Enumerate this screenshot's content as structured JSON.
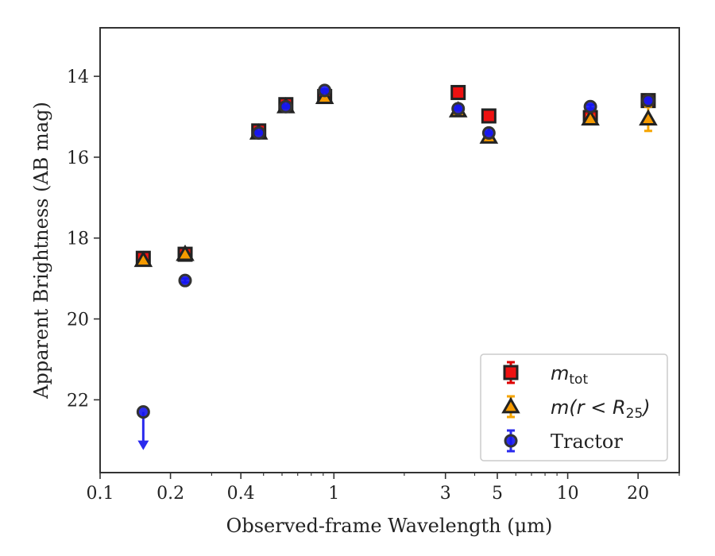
{
  "chart_data": {
    "type": "scatter",
    "title": "",
    "xlabel": "Observed-frame Wavelength (μm)",
    "ylabel": "Apparent Brightness (AB mag)",
    "xscale": "log",
    "xlim": [
      0.1,
      30
    ],
    "ylim": [
      23.8,
      12.8
    ],
    "y_inverted": true,
    "x_ticks": [
      0.1,
      0.2,
      0.4,
      1,
      3,
      5,
      10,
      20
    ],
    "x_tick_labels": [
      "0.1",
      "0.2",
      "0.4",
      "1",
      "3",
      "5",
      "10",
      "20"
    ],
    "y_ticks": [
      14,
      16,
      18,
      20,
      22
    ],
    "y_tick_labels": [
      "14",
      "16",
      "18",
      "20",
      "22"
    ],
    "grid": false,
    "legend_position": "lower-right",
    "series": [
      {
        "name": "m_tot",
        "marker": "square",
        "color": "#ee1111",
        "edge_color": "#222222",
        "error_color": "#dd0000",
        "x": [
          0.153,
          0.231,
          0.477,
          0.623,
          0.913,
          3.4,
          4.6,
          12.5,
          22.1
        ],
        "y": [
          18.5,
          18.4,
          15.35,
          14.7,
          14.5,
          14.4,
          14.98,
          15.02,
          14.6
        ],
        "yerr": [
          0.05,
          0.05,
          0.03,
          0.03,
          0.03,
          0.03,
          0.03,
          0.05,
          0.05
        ]
      },
      {
        "name": "m(r < R25)",
        "marker": "triangle",
        "color": "#f59a00",
        "edge_color": "#222222",
        "error_color": "#f5a400",
        "x": [
          0.153,
          0.231,
          0.477,
          0.623,
          0.913,
          3.4,
          4.6,
          12.5,
          22.1
        ],
        "y": [
          18.55,
          18.4,
          15.4,
          14.75,
          14.52,
          14.85,
          15.5,
          15.05,
          15.05
        ],
        "yerr": [
          0.05,
          0.05,
          0.03,
          0.03,
          0.03,
          0.03,
          0.04,
          0.08,
          0.3
        ]
      },
      {
        "name": "Tractor",
        "marker": "circle",
        "color": "#1515ee",
        "edge_color": "#333333",
        "error_color": "#2a2aee",
        "x": [
          0.153,
          0.231,
          0.477,
          0.623,
          0.913,
          3.4,
          4.6,
          12.5,
          22.1
        ],
        "y": [
          22.3,
          19.05,
          15.4,
          14.75,
          14.35,
          14.8,
          15.4,
          14.75,
          14.6
        ],
        "yerr": [
          0.05,
          0.05,
          0.03,
          0.03,
          0.03,
          0.03,
          0.03,
          0.05,
          0.05
        ],
        "upper_limit": [
          true,
          false,
          false,
          false,
          false,
          false,
          false,
          false,
          false
        ]
      }
    ],
    "legend_entries": [
      {
        "series": 0,
        "label_main": "m",
        "label_sub": "tot",
        "label_rest": ""
      },
      {
        "series": 1,
        "label_main": "m(r < R",
        "label_sub": "25",
        "label_rest": ")"
      },
      {
        "series": 2,
        "label_main": "Tractor",
        "label_sub": "",
        "label_rest": ""
      }
    ]
  }
}
